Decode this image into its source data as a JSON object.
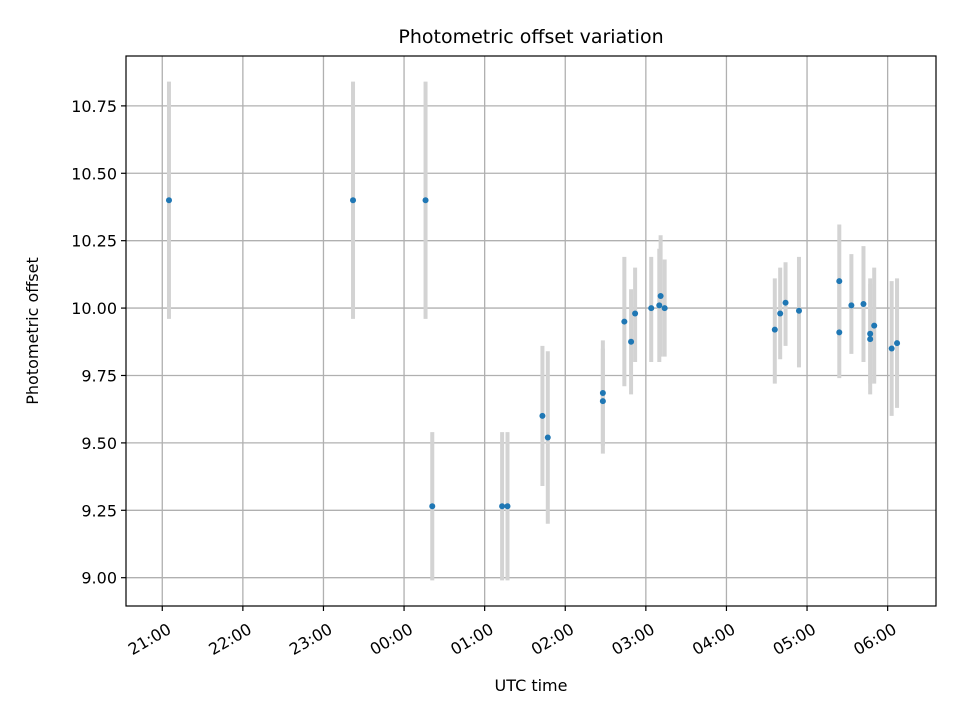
{
  "chart_data": {
    "type": "scatter",
    "title": "Photometric offset variation",
    "xlabel": "UTC time",
    "ylabel": "Photometric offset",
    "grid": true,
    "x_tick_labels": [
      "21:00",
      "22:00",
      "23:00",
      "00:00",
      "01:00",
      "02:00",
      "03:00",
      "04:00",
      "05:00",
      "06:00"
    ],
    "y_ticks": [
      9.0,
      9.25,
      9.5,
      9.75,
      10.0,
      10.25,
      10.5,
      10.75
    ],
    "y_tick_labels": [
      "9.00",
      "9.25",
      "9.50",
      "9.75",
      "10.00",
      "10.25",
      "10.50",
      "10.75"
    ],
    "ylim": [
      8.895,
      10.935
    ],
    "xlim": [
      "20:33",
      "06:36"
    ],
    "colors": {
      "point": "#1f77b4",
      "errorbar": "#d3d3d3",
      "grid": "#b0b0b0"
    },
    "series": [
      {
        "points": [
          {
            "x": "21:05",
            "y": 10.4,
            "ymin": 9.96,
            "ymax": 10.84
          },
          {
            "x": "23:22",
            "y": 10.4,
            "ymin": 9.96,
            "ymax": 10.84
          },
          {
            "x": "00:16",
            "y": 10.4,
            "ymin": 9.96,
            "ymax": 10.84
          },
          {
            "x": "00:21",
            "y": 9.265,
            "ymin": 8.99,
            "ymax": 9.54
          },
          {
            "x": "01:13",
            "y": 9.265,
            "ymin": 8.99,
            "ymax": 9.54
          },
          {
            "x": "01:17",
            "y": 9.265,
            "ymin": 8.99,
            "ymax": 9.54
          },
          {
            "x": "01:43",
            "y": 9.6,
            "ymin": 9.34,
            "ymax": 9.86
          },
          {
            "x": "01:47",
            "y": 9.52,
            "ymin": 9.2,
            "ymax": 9.84
          },
          {
            "x": "02:28",
            "y": 9.685,
            "ymin": 9.49,
            "ymax": 9.88
          },
          {
            "x": "02:28",
            "y": 9.655,
            "ymin": 9.46,
            "ymax": 9.85
          },
          {
            "x": "02:44",
            "y": 9.95,
            "ymin": 9.71,
            "ymax": 10.19
          },
          {
            "x": "02:49",
            "y": 9.875,
            "ymin": 9.68,
            "ymax": 10.07
          },
          {
            "x": "02:52",
            "y": 9.98,
            "ymin": 9.8,
            "ymax": 10.15
          },
          {
            "x": "03:04",
            "y": 10.0,
            "ymin": 9.8,
            "ymax": 10.19
          },
          {
            "x": "03:10",
            "y": 10.01,
            "ymin": 9.8,
            "ymax": 10.22
          },
          {
            "x": "03:11",
            "y": 10.045,
            "ymin": 9.82,
            "ymax": 10.27
          },
          {
            "x": "03:14",
            "y": 10.0,
            "ymin": 9.82,
            "ymax": 10.18
          },
          {
            "x": "04:36",
            "y": 9.92,
            "ymin": 9.72,
            "ymax": 10.11
          },
          {
            "x": "04:40",
            "y": 9.98,
            "ymin": 9.81,
            "ymax": 10.15
          },
          {
            "x": "04:44",
            "y": 10.02,
            "ymin": 9.86,
            "ymax": 10.17
          },
          {
            "x": "04:54",
            "y": 9.99,
            "ymin": 9.78,
            "ymax": 10.19
          },
          {
            "x": "05:24",
            "y": 10.1,
            "ymin": 9.89,
            "ymax": 10.31
          },
          {
            "x": "05:24",
            "y": 9.91,
            "ymin": 9.74,
            "ymax": 10.09
          },
          {
            "x": "05:33",
            "y": 10.01,
            "ymin": 9.83,
            "ymax": 10.2
          },
          {
            "x": "05:42",
            "y": 10.015,
            "ymin": 9.8,
            "ymax": 10.23
          },
          {
            "x": "05:47",
            "y": 9.905,
            "ymin": 9.72,
            "ymax": 10.11
          },
          {
            "x": "05:47",
            "y": 9.885,
            "ymin": 9.68,
            "ymax": 10.09
          },
          {
            "x": "05:50",
            "y": 9.935,
            "ymin": 9.72,
            "ymax": 10.15
          },
          {
            "x": "06:03",
            "y": 9.85,
            "ymin": 9.6,
            "ymax": 10.1
          },
          {
            "x": "06:07",
            "y": 9.87,
            "ymin": 9.63,
            "ymax": 10.11
          }
        ]
      }
    ]
  }
}
